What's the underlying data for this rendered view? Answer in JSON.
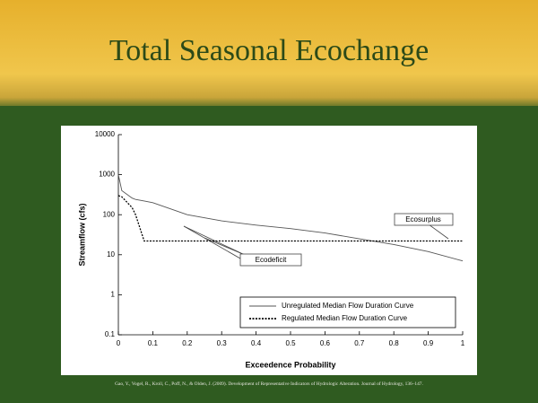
{
  "title": "Total Seasonal Ecochange",
  "citation": "Gao, Y., Vogel, R., Kroll, C., Poff, N., & Olden, J. (2009). Development of Representative Indicators of Hydrologic Alteration. Journal of Hydrology, 136–147.",
  "chart_data": {
    "type": "line",
    "x_label": "Exceedence Probability",
    "y_label": "Streamflow (cfs)",
    "x": [
      0,
      0.01,
      0.04,
      0.05,
      0.075,
      0.1,
      0.2,
      0.3,
      0.4,
      0.5,
      0.6,
      0.7,
      0.8,
      0.9,
      1
    ],
    "series": [
      {
        "name": "Unregulated Median Flow Duration Curve",
        "color": "#555555",
        "line_style": "solid",
        "values": [
          1000,
          400,
          260,
          240,
          220,
          200,
          100,
          70,
          55,
          45,
          35,
          25,
          18,
          12,
          7
        ]
      },
      {
        "name": "Regulated Median Flow Duration Curve",
        "color": "#000000",
        "line_style": "dashed",
        "values": [
          300,
          280,
          150,
          100,
          22,
          22,
          22,
          22,
          22,
          22,
          22,
          22,
          22,
          22,
          22
        ]
      }
    ],
    "xlim": [
      0,
      1
    ],
    "xticks": [
      0,
      0.1,
      0.2,
      0.3,
      0.4,
      0.5,
      0.6,
      0.7,
      0.8,
      0.9,
      1
    ],
    "ylim": [
      0.1,
      10000
    ],
    "yticks": [
      0.1,
      1,
      10,
      100,
      1000,
      10000
    ],
    "y_log": true,
    "legend": "lower right",
    "annotations": [
      "Ecosurplus",
      "Ecodeficit"
    ]
  }
}
